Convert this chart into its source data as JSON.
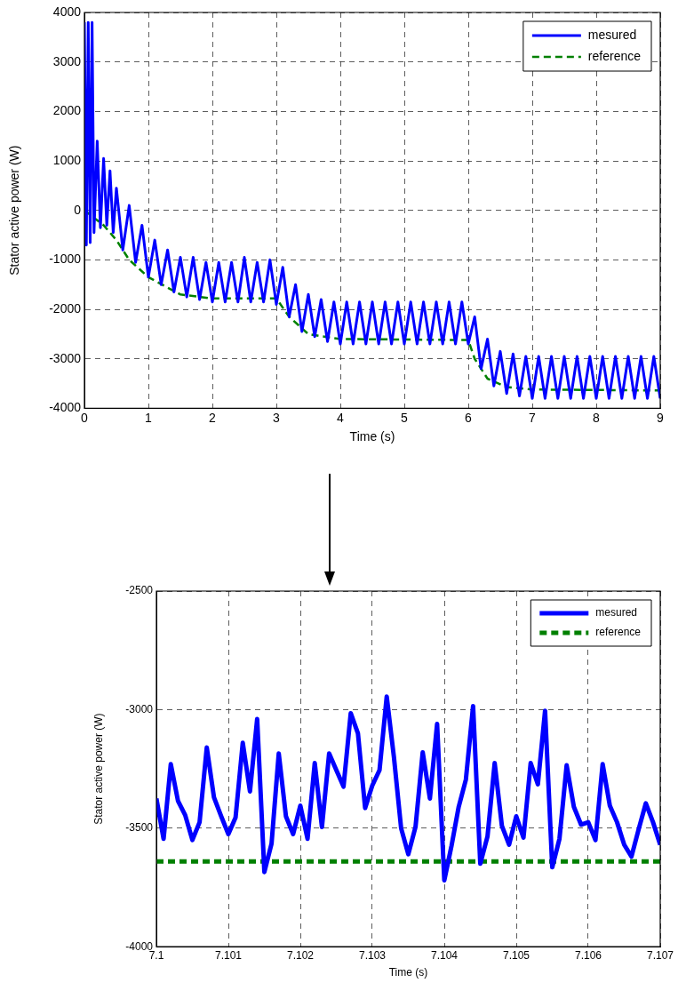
{
  "chart_data": [
    {
      "type": "line",
      "xlabel": "Time (s)",
      "ylabel": "Stator active power (W)",
      "xlim": [
        0,
        9
      ],
      "xticks": [
        0,
        1,
        2,
        3,
        4,
        5,
        6,
        7,
        8,
        9
      ],
      "ylim": [
        -4000,
        4000
      ],
      "yticks": [
        -4000,
        -3000,
        -2000,
        -1000,
        0,
        1000,
        2000,
        3000,
        4000
      ],
      "grid": true,
      "legend": "top right",
      "marker": "none",
      "series": [
        {
          "name": "mesured",
          "color": "#0000ff",
          "line_style": "solid",
          "x": [
            0,
            0.03,
            0.06,
            0.09,
            0.12,
            0.15,
            0.2,
            0.25,
            0.3,
            0.35,
            0.4,
            0.45,
            0.5,
            0.6,
            0.7,
            0.8,
            0.9,
            1.0,
            1.1,
            1.2,
            1.3,
            1.4,
            1.5,
            1.6,
            1.7,
            1.8,
            1.9,
            2.0,
            2.1,
            2.2,
            2.3,
            2.4,
            2.5,
            2.6,
            2.7,
            2.8,
            2.9,
            3.0,
            3.1,
            3.2,
            3.3,
            3.4,
            3.5,
            3.6,
            3.7,
            3.8,
            3.9,
            4.0,
            4.1,
            4.2,
            4.3,
            4.4,
            4.5,
            4.6,
            4.7,
            4.8,
            4.9,
            5.0,
            5.1,
            5.2,
            5.3,
            5.4,
            5.5,
            5.6,
            5.7,
            5.8,
            5.9,
            6.0,
            6.1,
            6.2,
            6.3,
            6.4,
            6.5,
            6.6,
            6.7,
            6.8,
            6.9,
            7.0,
            7.1,
            7.2,
            7.3,
            7.4,
            7.5,
            7.6,
            7.7,
            7.8,
            7.9,
            8.0,
            8.1,
            8.2,
            8.3,
            8.4,
            8.5,
            8.6,
            8.7,
            8.8,
            8.9,
            9.0
          ],
          "values": [
            3800,
            -700,
            3800,
            -650,
            3800,
            -450,
            1400,
            -350,
            1050,
            -300,
            800,
            -450,
            450,
            -800,
            100,
            -1050,
            -300,
            -1350,
            -600,
            -1500,
            -800,
            -1650,
            -950,
            -1750,
            -950,
            -1800,
            -1050,
            -1850,
            -1050,
            -1850,
            -1050,
            -1850,
            -950,
            -1850,
            -1050,
            -1850,
            -1000,
            -1900,
            -1150,
            -2150,
            -1500,
            -2450,
            -1700,
            -2550,
            -1800,
            -2650,
            -1850,
            -2700,
            -1850,
            -2700,
            -1850,
            -2700,
            -1850,
            -2700,
            -1850,
            -2700,
            -1850,
            -2700,
            -1850,
            -2700,
            -1850,
            -2700,
            -1850,
            -2700,
            -1850,
            -2700,
            -1850,
            -2700,
            -2150,
            -3200,
            -2600,
            -3550,
            -2850,
            -3700,
            -2900,
            -3750,
            -2950,
            -3800,
            -2950,
            -3800,
            -2950,
            -3800,
            -2950,
            -3800,
            -2950,
            -3800,
            -2950,
            -3800,
            -2950,
            -3800,
            -2950,
            -3800,
            -2950,
            -3800,
            -2950,
            -3800,
            -2950,
            -3800
          ]
        },
        {
          "name": "reference",
          "color": "#008000",
          "line_style": "dashed",
          "x": [
            0,
            0.3,
            0.5,
            0.7,
            1.0,
            1.5,
            2.0,
            3.0,
            3.2,
            3.5,
            4.0,
            6.0,
            6.1,
            6.3,
            6.6,
            7.0,
            9.0
          ],
          "values": [
            0,
            -300,
            -600,
            -1000,
            -1350,
            -1700,
            -1780,
            -1780,
            -2150,
            -2500,
            -2600,
            -2620,
            -3000,
            -3400,
            -3570,
            -3620,
            -3640
          ]
        }
      ]
    },
    {
      "type": "line",
      "xlabel": "Time (s)",
      "ylabel": "Stator active power (W)",
      "xlim": [
        7.1,
        7.107
      ],
      "xticks": [
        7.1,
        7.101,
        7.102,
        7.103,
        7.104,
        7.105,
        7.106,
        7.107
      ],
      "ylim": [
        -4000,
        -2500
      ],
      "yticks": [
        -4000,
        -3500,
        -3000,
        -2500
      ],
      "grid": true,
      "legend": "top right",
      "marker": "none",
      "series": [
        {
          "name": "mesured",
          "color": "#0000ff",
          "line_style": "solid",
          "x": [
            7.1,
            7.1001,
            7.1002,
            7.1003,
            7.1004,
            7.1005,
            7.1006,
            7.1007,
            7.1008,
            7.1009,
            7.101,
            7.1011,
            7.1012,
            7.1013,
            7.1014,
            7.1015,
            7.1016,
            7.1017,
            7.1018,
            7.1019,
            7.102,
            7.1021,
            7.1022,
            7.1023,
            7.1024,
            7.1025,
            7.1026,
            7.1027,
            7.1028,
            7.1029,
            7.103,
            7.1031,
            7.1032,
            7.1033,
            7.1034,
            7.1035,
            7.1036,
            7.1037,
            7.1038,
            7.1039,
            7.104,
            7.1041,
            7.1042,
            7.1043,
            7.1044,
            7.1045,
            7.1046,
            7.1047,
            7.1048,
            7.1049,
            7.105,
            7.1051,
            7.1052,
            7.1053,
            7.1054,
            7.1055,
            7.1056,
            7.1057,
            7.1058,
            7.1059,
            7.106,
            7.1061,
            7.1062,
            7.1063,
            7.1064,
            7.1065,
            7.1066,
            7.1067,
            7.1068,
            7.1069,
            7.107
          ],
          "values": [
            -3375,
            -3545,
            -3230,
            -3385,
            -3445,
            -3550,
            -3475,
            -3160,
            -3370,
            -3450,
            -3525,
            -3455,
            -3140,
            -3345,
            -3040,
            -3685,
            -3565,
            -3185,
            -3450,
            -3525,
            -3405,
            -3545,
            -3225,
            -3495,
            -3185,
            -3255,
            -3325,
            -3015,
            -3100,
            -3415,
            -3320,
            -3255,
            -2945,
            -3200,
            -3500,
            -3610,
            -3495,
            -3180,
            -3375,
            -3060,
            -3720,
            -3575,
            -3410,
            -3295,
            -2985,
            -3650,
            -3535,
            -3225,
            -3490,
            -3570,
            -3450,
            -3540,
            -3225,
            -3315,
            -3005,
            -3665,
            -3545,
            -3235,
            -3410,
            -3485,
            -3475,
            -3550,
            -3230,
            -3405,
            -3475,
            -3570,
            -3620,
            -3505,
            -3395,
            -3475,
            -3570
          ]
        },
        {
          "name": "reference",
          "color": "#008000",
          "line_style": "dashed",
          "x": [
            7.1,
            7.107
          ],
          "values": [
            -3640,
            -3640
          ]
        }
      ]
    }
  ]
}
